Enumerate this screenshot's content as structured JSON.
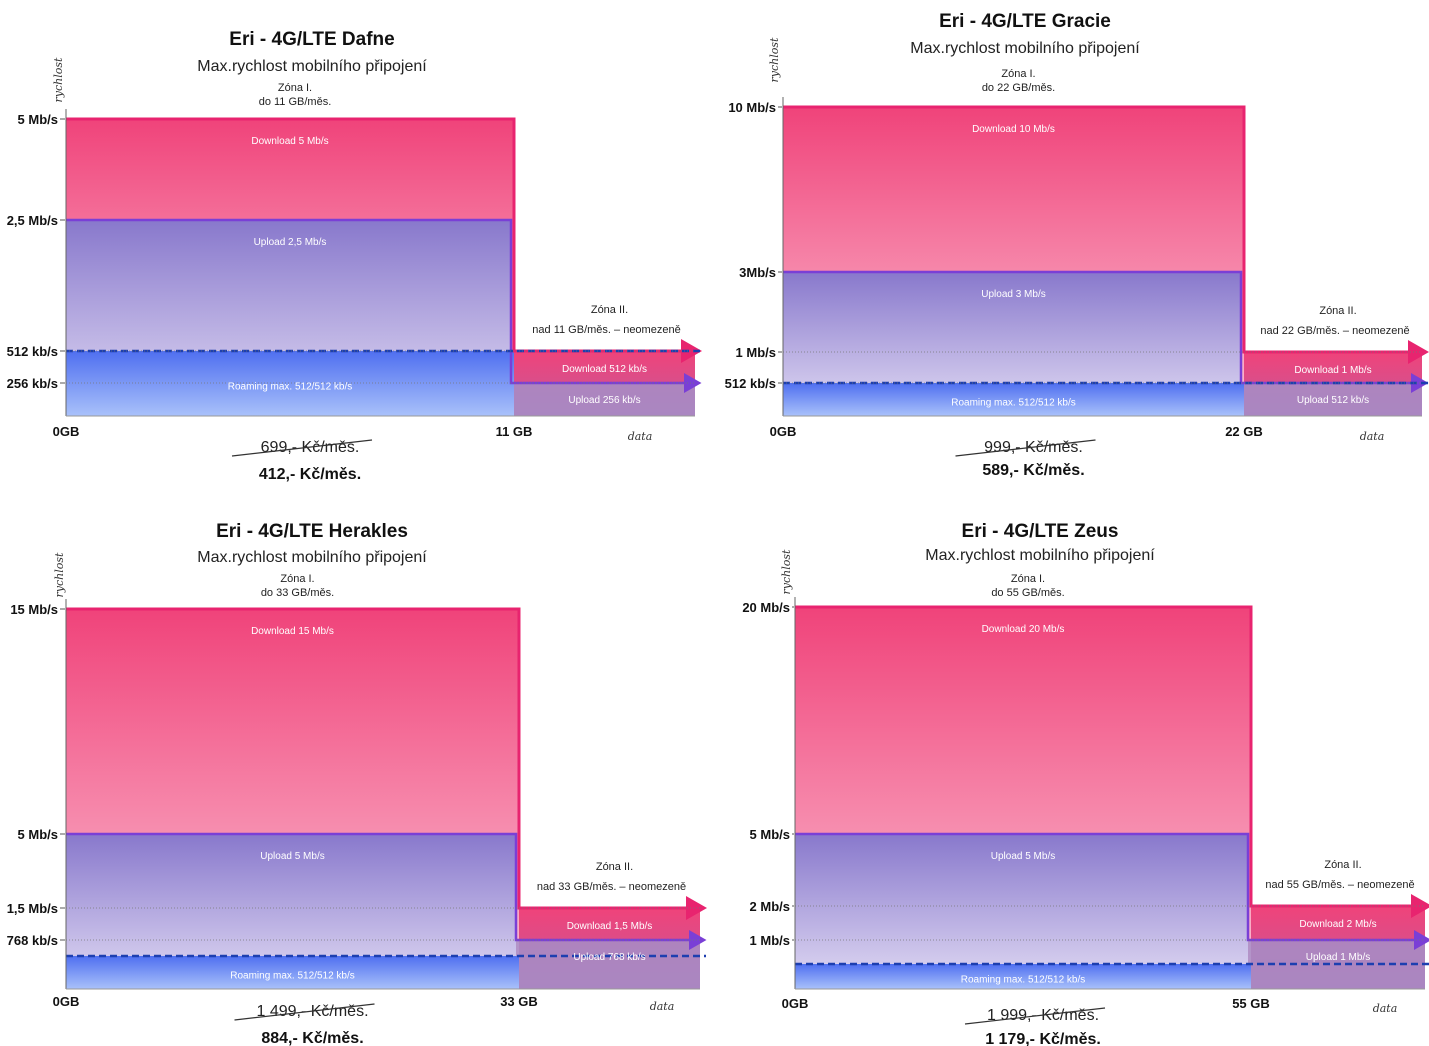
{
  "colors": {
    "download_top": "#f0437a",
    "download_bottom": "#fbc2d4",
    "download_edge": "#e8246f",
    "upload_top": "#8878cc",
    "upload_bottom": "#e2dcf4",
    "upload_edge": "#7a3fd6",
    "roaming_top": "#4f6ff0",
    "roaming_bottom": "#a9c1fa",
    "roaming_dash": "#1d3fb0",
    "zone2_download_top": "#f0437a",
    "zone2_download_bottom": "#c25a9a",
    "zone2_upload": "#a68ec8"
  },
  "chart_data": [
    {
      "type": "area",
      "title": "Eri - 4G/LTE Dafne",
      "subtitle": "Max.rychlost mobilního připojení",
      "ylabel": "rychlost",
      "xlabel": "data",
      "zone1_label": [
        "Zóna I.",
        "do 11 GB/měs."
      ],
      "zone2_label": [
        "Zóna II.",
        "nad 11 GB/měs. – neomezeně"
      ],
      "x_ticks": [
        "0GB",
        "11 GB"
      ],
      "y_ticks": [
        {
          "label": "5 Mb/s",
          "kbps": 5000
        },
        {
          "label": "2,5 Mb/s",
          "kbps": 2500
        },
        {
          "label": "512 kb/s",
          "kbps": 512
        },
        {
          "label": "256 kb/s",
          "kbps": 256
        }
      ],
      "ylim_kbps": [
        0,
        5000
      ],
      "zone1": {
        "download_kbps": 5000,
        "upload_kbps": 2500,
        "download_label": "Download 5 Mb/s",
        "upload_label": "Upload 2,5 Mb/s"
      },
      "zone2": {
        "download_kbps": 512,
        "upload_kbps": 256,
        "download_label": "Download 512 kb/s",
        "upload_label": "Upload 256 kb/s"
      },
      "roaming": {
        "kbps": 512,
        "label": "Roaming max. 512/512 kb/s"
      },
      "old_price": "699,- Kč/měs.",
      "new_price": "412,- Kč/měs."
    },
    {
      "type": "area",
      "title": "Eri - 4G/LTE Gracie",
      "subtitle": "Max.rychlost mobilního připojení",
      "ylabel": "rychlost",
      "xlabel": "data",
      "zone1_label": [
        "Zóna I.",
        "do 22 GB/měs."
      ],
      "zone2_label": [
        "Zóna II.",
        "nad 22 GB/měs. – neomezeně"
      ],
      "x_ticks": [
        "0GB",
        "22 GB"
      ],
      "y_ticks": [
        {
          "label": "10 Mb/s",
          "kbps": 10000
        },
        {
          "label": "3Mb/s",
          "kbps": 3000
        },
        {
          "label": "1 Mb/s",
          "kbps": 1000
        },
        {
          "label": "512 kb/s",
          "kbps": 512
        }
      ],
      "ylim_kbps": [
        0,
        10000
      ],
      "zone1": {
        "download_kbps": 10000,
        "upload_kbps": 3000,
        "download_label": "Download 10 Mb/s",
        "upload_label": "Upload 3 Mb/s"
      },
      "zone2": {
        "download_kbps": 1000,
        "upload_kbps": 512,
        "download_label": "Download 1 Mb/s",
        "upload_label": "Upload 512 kb/s"
      },
      "roaming": {
        "kbps": 512,
        "label": "Roaming max. 512/512 kb/s"
      },
      "old_price": "999,- Kč/měs.",
      "new_price": "589,- Kč/měs."
    },
    {
      "type": "area",
      "title": "Eri - 4G/LTE Herakles",
      "subtitle": "Max.rychlost mobilního připojení",
      "ylabel": "rychlost",
      "xlabel": "data",
      "zone1_label": [
        "Zóna I.",
        "do 33 GB/měs."
      ],
      "zone2_label": [
        "Zóna II.",
        "nad 33 GB/měs. – neomezeně"
      ],
      "x_ticks": [
        "0GB",
        "33 GB"
      ],
      "y_ticks": [
        {
          "label": "15 Mb/s",
          "kbps": 15000
        },
        {
          "label": "5 Mb/s",
          "kbps": 5000
        },
        {
          "label": "1,5 Mb/s",
          "kbps": 1500
        },
        {
          "label": "768 kb/s",
          "kbps": 768
        }
      ],
      "ylim_kbps": [
        0,
        15000
      ],
      "zone1": {
        "download_kbps": 15000,
        "upload_kbps": 5000,
        "download_label": "Download 15 Mb/s",
        "upload_label": "Upload 5 Mb/s"
      },
      "zone2": {
        "download_kbps": 1500,
        "upload_kbps": 768,
        "download_label": "Download 1,5 Mb/s",
        "upload_label": "Upload 768 kb/s"
      },
      "roaming": {
        "kbps": 512,
        "label": "Roaming max. 512/512 kb/s"
      },
      "old_price": "1 499,- Kč/měs.",
      "new_price": "884,- Kč/měs."
    },
    {
      "type": "area",
      "title": "Eri - 4G/LTE Zeus",
      "subtitle": "Max.rychlost mobilního připojení",
      "ylabel": "rychlost",
      "xlabel": "data",
      "zone1_label": [
        "Zóna I.",
        "do 55 GB/měs."
      ],
      "zone2_label": [
        "Zóna II.",
        "nad 55 GB/měs. – neomezeně"
      ],
      "x_ticks": [
        "0GB",
        "55 GB"
      ],
      "y_ticks": [
        {
          "label": "20 Mb/s",
          "kbps": 20000
        },
        {
          "label": "5 Mb/s",
          "kbps": 5000
        },
        {
          "label": "2 Mb/s",
          "kbps": 2000
        },
        {
          "label": "1 Mb/s",
          "kbps": 1000
        }
      ],
      "ylim_kbps": [
        0,
        20000
      ],
      "zone1": {
        "download_kbps": 20000,
        "upload_kbps": 5000,
        "download_label": "Download 20 Mb/s",
        "upload_label": "Upload 5 Mb/s"
      },
      "zone2": {
        "download_kbps": 2000,
        "upload_kbps": 1000,
        "download_label": "Download 2 Mb/s",
        "upload_label": "Upload 1 Mb/s"
      },
      "roaming": {
        "kbps": 512,
        "label": "Roaming max. 512/512 kb/s"
      },
      "old_price": "1 999,- Kč/měs.",
      "new_price": "1 179,- Kč/měs."
    }
  ]
}
